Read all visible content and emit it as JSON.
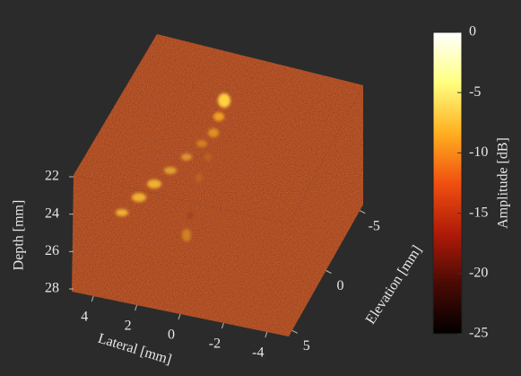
{
  "chart_data": {
    "type": "volume",
    "zlabel": "Depth [mm]",
    "zlim": [
      22,
      28
    ],
    "zticks": [
      22,
      24,
      26,
      28
    ],
    "xlabel": "Lateral [mm]",
    "xlim": [
      5,
      -5
    ],
    "xticks": [
      4,
      2,
      0,
      -2,
      -4
    ],
    "ylabel": "Elevation [mm]",
    "ylim": [
      5.5,
      -5.5
    ],
    "yticks": [
      -5,
      0,
      5
    ],
    "colorbar": {
      "label": "Amplitude [dB]",
      "lim": [
        -25,
        0
      ],
      "ticks": [
        0,
        -5,
        -10,
        -15,
        -20,
        -25
      ],
      "colormap": [
        "#000000",
        "#4a0a04",
        "#b01a08",
        "#f05010",
        "#ffb020",
        "#ffff80",
        "#ffffff"
      ]
    }
  }
}
